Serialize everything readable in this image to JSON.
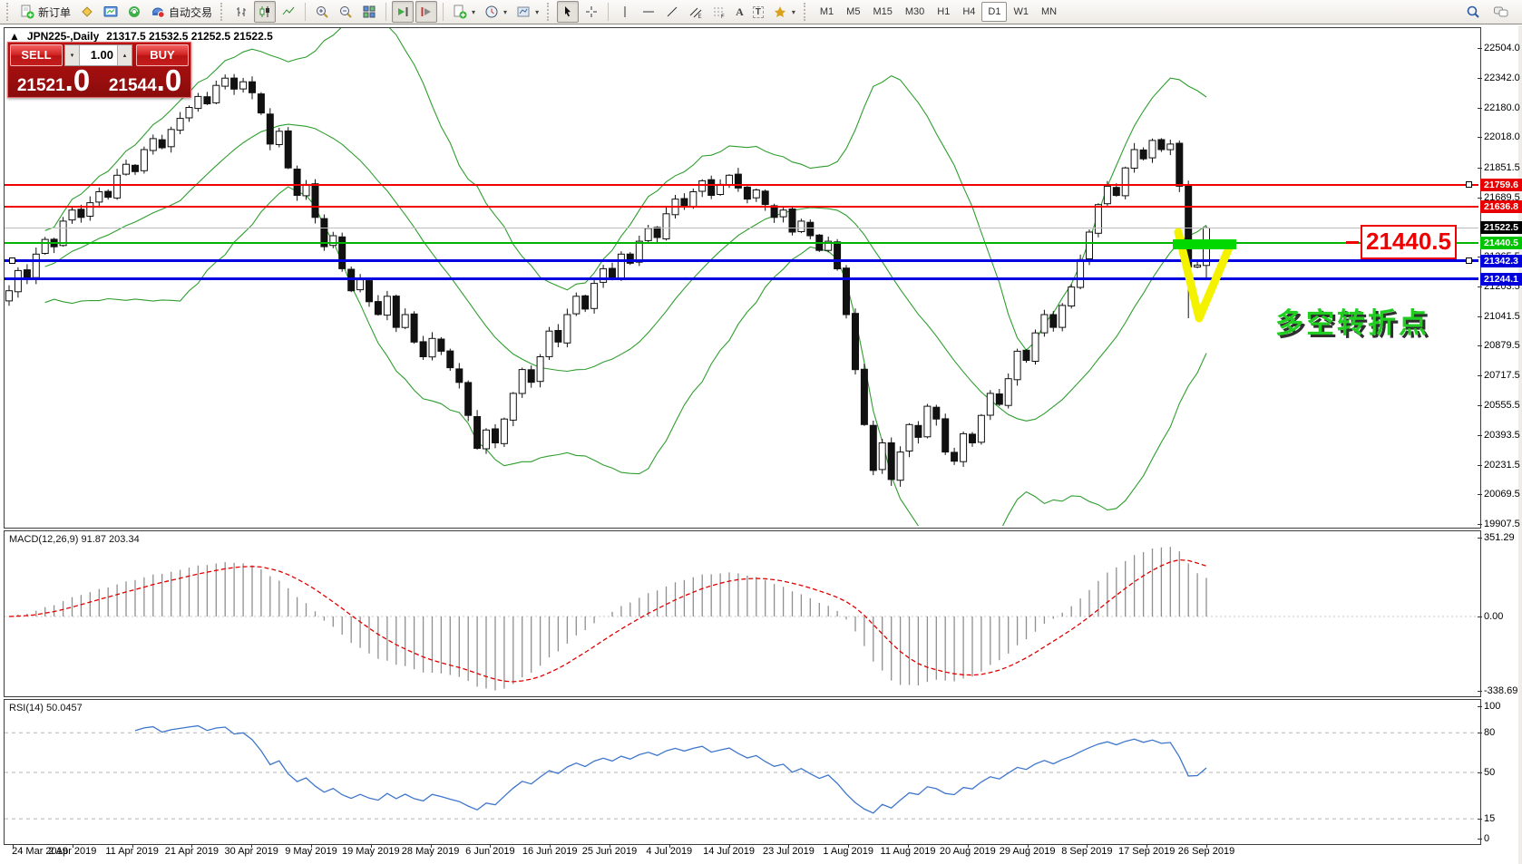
{
  "toolbar": {
    "new_order": "新订单",
    "autotrading": "自动交易",
    "timeframes": [
      "M1",
      "M5",
      "M15",
      "M30",
      "H1",
      "H4",
      "D1",
      "W1",
      "MN"
    ],
    "active_timeframe": "D1"
  },
  "chart": {
    "collapse_icon": "▲",
    "symbol_period": "JPN225-,Daily",
    "ohlc": "21317.5 21532.5 21252.5 21522.5"
  },
  "trade_panel": {
    "sell_label": "SELL",
    "buy_label": "BUY",
    "volume": "1.00",
    "sell_price_int": "21521",
    "sell_price_frac": ".0",
    "buy_price_int": "21544",
    "buy_price_frac": ".0"
  },
  "annotations": {
    "price_callout": "21440.5",
    "note_text": "多空转折点"
  },
  "price_axis": {
    "ticks": [
      "22504.0",
      "22342.0",
      "22180.0",
      "22018.0",
      "21851.5",
      "21689.5",
      "21365.5",
      "21203.5",
      "21041.5",
      "20879.5",
      "20717.5",
      "20555.5",
      "20393.5",
      "20231.5",
      "20069.5",
      "19907.5"
    ],
    "tags": [
      {
        "label": "21759.6",
        "price": 21759.6,
        "bg": "#e80000",
        "fg": "#ffffff"
      },
      {
        "label": "21636.8",
        "price": 21636.8,
        "bg": "#e80000",
        "fg": "#ffffff"
      },
      {
        "label": "21522.5",
        "price": 21522.5,
        "bg": "#000000",
        "fg": "#ffffff"
      },
      {
        "label": "21440.5",
        "price": 21440.5,
        "bg": "#00c400",
        "fg": "#ffffff"
      },
      {
        "label": "21342.3",
        "price": 21342.3,
        "bg": "#0000dd",
        "fg": "#ffffff"
      },
      {
        "label": "21244.1",
        "price": 21244.1,
        "bg": "#0000dd",
        "fg": "#ffffff"
      }
    ]
  },
  "levels": [
    {
      "price": 21759.6,
      "color": "#f00000",
      "width": 2,
      "handles": [
        "right"
      ]
    },
    {
      "price": 21636.8,
      "color": "#f00000",
      "width": 2,
      "handles": []
    },
    {
      "price": 21522.5,
      "color": "#bdbdbd",
      "width": 1,
      "handles": []
    },
    {
      "price": 21440.5,
      "color": "#00b400",
      "width": 2,
      "handles": []
    },
    {
      "price": 21342.3,
      "color": "#0000e0",
      "width": 3,
      "handles": [
        "left",
        "right"
      ]
    },
    {
      "price": 21244.1,
      "color": "#0000e0",
      "width": 3,
      "handles": []
    }
  ],
  "macd": {
    "label": "MACD(12,26,9) 91.87 203.34",
    "axis": [
      {
        "label": "351.29",
        "v": 351.29
      },
      {
        "label": "0.00",
        "v": 0
      },
      {
        "label": "-338.69",
        "v": -338.69
      }
    ]
  },
  "rsi": {
    "label": "RSI(14) 50.0457",
    "axis": [
      {
        "label": "100",
        "v": 100
      },
      {
        "label": "80",
        "v": 80
      },
      {
        "label": "50",
        "v": 50
      },
      {
        "label": "15",
        "v": 15
      },
      {
        "label": "0",
        "v": 0
      }
    ],
    "levels": [
      80,
      50,
      15
    ]
  },
  "date_axis": [
    "24 Mar 2019",
    "2 Apr 2019",
    "11 Apr 2019",
    "21 Apr 2019",
    "30 Apr 2019",
    "9 May 2019",
    "19 May 2019",
    "28 May 2019",
    "6 Jun 2019",
    "16 Jun 2019",
    "25 Jun 2019",
    "4 Jul 2019",
    "14 Jul 2019",
    "23 Jul 2019",
    "1 Aug 2019",
    "11 Aug 2019",
    "20 Aug 2019",
    "29 Aug 2019",
    "8 Sep 2019",
    "17 Sep 2019",
    "26 Sep 2019"
  ],
  "chart_data": {
    "type": "candlestick",
    "symbol": "JPN225",
    "period": "Daily",
    "last_ohlc": {
      "o": 21317.5,
      "h": 21532.5,
      "l": 21252.5,
      "c": 21522.5
    },
    "closes": [
      21180,
      21290,
      21250,
      21380,
      21460,
      21420,
      21560,
      21620,
      21580,
      21660,
      21720,
      21690,
      21810,
      21870,
      21830,
      21950,
      22010,
      21960,
      22060,
      22120,
      22180,
      22240,
      22200,
      22300,
      22340,
      22280,
      22320,
      22260,
      22150,
      21980,
      22050,
      21850,
      21700,
      21760,
      21580,
      21420,
      21480,
      21300,
      21180,
      21240,
      21120,
      21050,
      21150,
      20980,
      21050,
      20900,
      20820,
      20920,
      20850,
      20760,
      20680,
      20500,
      20320,
      20420,
      20350,
      20480,
      20620,
      20750,
      20680,
      20820,
      20960,
      20900,
      21050,
      21150,
      21080,
      21220,
      21300,
      21250,
      21380,
      21330,
      21450,
      21520,
      21470,
      21600,
      21680,
      21640,
      21720,
      21780,
      21700,
      21760,
      21810,
      21740,
      21680,
      21730,
      21650,
      21580,
      21620,
      21500,
      21560,
      21480,
      21400,
      21450,
      21300,
      21050,
      20750,
      20450,
      20200,
      20350,
      20150,
      20300,
      20450,
      20380,
      20550,
      20480,
      20300,
      20250,
      20400,
      20350,
      20500,
      20620,
      20560,
      20700,
      20850,
      20800,
      20950,
      21050,
      20980,
      21100,
      21200,
      21350,
      21500,
      21650,
      21750,
      21700,
      21850,
      21950,
      21900,
      22000,
      21950,
      21980,
      21750,
      21310,
      21320,
      21522.5
    ],
    "overrides": {
      "131": {
        "l": 21030
      },
      "133": {
        "o": 21317.5,
        "h": 21532.5,
        "l": 21252.5,
        "c": 21522.5
      }
    },
    "ylim": [
      19907.5,
      22504.0
    ],
    "indicators": [
      "Bollinger Bands",
      "MACD(12,26,9)",
      "RSI(14)"
    ],
    "colors": {
      "band": "#2f9e2f",
      "macd_hist": "#8f8f8f",
      "macd_signal": "#e00000",
      "rsi": "#3f76cc",
      "bull": "#ffffff",
      "bear": "#111111"
    }
  }
}
